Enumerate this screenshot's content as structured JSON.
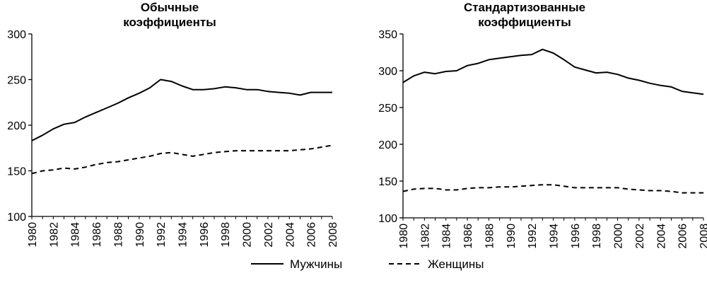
{
  "legend": {
    "male_label": "Мужчины",
    "female_label": "Женщины"
  },
  "chart_data": [
    {
      "type": "line",
      "title_lines": [
        "Обычные",
        "коэффициенты"
      ],
      "xlabel": "",
      "ylabel": "",
      "x": [
        1980,
        1981,
        1982,
        1983,
        1984,
        1985,
        1986,
        1987,
        1988,
        1989,
        1990,
        1991,
        1992,
        1993,
        1994,
        1995,
        1996,
        1997,
        1998,
        1999,
        2000,
        2001,
        2002,
        2003,
        2004,
        2005,
        2006,
        2007,
        2008
      ],
      "xticks": [
        1980,
        1982,
        1984,
        1986,
        1988,
        1990,
        1992,
        1994,
        1996,
        1998,
        2000,
        2002,
        2004,
        2006,
        2008
      ],
      "yticks": [
        100,
        150,
        200,
        250,
        300
      ],
      "ylim": [
        100,
        300
      ],
      "xlim": [
        1980,
        2008
      ],
      "grid": false,
      "legend_position": "bottom-center",
      "series": [
        {
          "name": "Мужчины",
          "style": "solid",
          "values": [
            183,
            189,
            196,
            201,
            203,
            209,
            214,
            219,
            224,
            230,
            235,
            241,
            250,
            248,
            243,
            239,
            239,
            240,
            242,
            241,
            239,
            239,
            237,
            236,
            235,
            233,
            236,
            236,
            236
          ]
        },
        {
          "name": "Женщины",
          "style": "dashed",
          "values": [
            147,
            150,
            151,
            153,
            152,
            154,
            157,
            159,
            160,
            162,
            164,
            166,
            169,
            170,
            168,
            166,
            168,
            170,
            171,
            172,
            172,
            172,
            172,
            172,
            172,
            173,
            174,
            176,
            178
          ]
        }
      ]
    },
    {
      "type": "line",
      "title_lines": [
        "Стандартизованные",
        "коэффициенты"
      ],
      "xlabel": "",
      "ylabel": "",
      "x": [
        1980,
        1981,
        1982,
        1983,
        1984,
        1985,
        1986,
        1987,
        1988,
        1989,
        1990,
        1991,
        1992,
        1993,
        1994,
        1995,
        1996,
        1997,
        1998,
        1999,
        2000,
        2001,
        2002,
        2003,
        2004,
        2005,
        2006,
        2007,
        2008
      ],
      "xticks": [
        1980,
        1982,
        1984,
        1986,
        1988,
        1990,
        1992,
        1994,
        1996,
        1998,
        2000,
        2002,
        2004,
        2006,
        2008
      ],
      "yticks": [
        100,
        150,
        200,
        250,
        300,
        350
      ],
      "ylim": [
        100,
        350
      ],
      "xlim": [
        1980,
        2008
      ],
      "grid": false,
      "legend_position": "bottom-center",
      "series": [
        {
          "name": "Мужчины",
          "style": "solid",
          "values": [
            284,
            293,
            298,
            296,
            299,
            300,
            307,
            310,
            315,
            317,
            319,
            321,
            322,
            329,
            324,
            315,
            305,
            301,
            297,
            298,
            295,
            290,
            287,
            283,
            280,
            278,
            272,
            270,
            268
          ]
        },
        {
          "name": "Женщины",
          "style": "dashed",
          "values": [
            136,
            139,
            140,
            140,
            138,
            138,
            140,
            141,
            141,
            142,
            142,
            143,
            144,
            145,
            145,
            143,
            141,
            141,
            141,
            141,
            141,
            139,
            138,
            137,
            137,
            136,
            134,
            134,
            134
          ]
        }
      ]
    }
  ]
}
